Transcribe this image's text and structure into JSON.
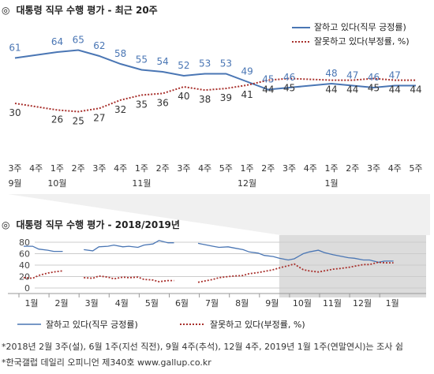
{
  "colors": {
    "approve": "#4a76b4",
    "disapprove": "#a8302c",
    "shade": "#dcdcdc",
    "grid": "#cccccc"
  },
  "titles": {
    "mark": "◎",
    "top": "대통령 직무 수행 평가 - 최근 20주",
    "bottom": "대통령 직무 수행 평가 - 2018/2019년"
  },
  "legend": {
    "approve": "잘하고 있다(직무 긍정률)",
    "disapprove": "잘못하고 있다(부정률, %)"
  },
  "notes": [
    "*2018년 2월 3주(설), 6월 1주(지선 직전), 9월 4주(추석), 12월 4주, 2019년 1월 1주(연말연시)는 조사 쉼",
    "*한국갤럽 데일리 오피니언 제340호 www.gallup.co.kr"
  ],
  "chart_data": [
    {
      "type": "line",
      "title": "대통령 직무 수행 평가 - 최근 20주",
      "categories": [
        "3주",
        "4주",
        "1주",
        "2주",
        "3주",
        "4주",
        "1주",
        "2주",
        "3주",
        "4주",
        "5주",
        "1주",
        "2주",
        "3주",
        "4주",
        "1주",
        "2주",
        "3주",
        "4주",
        "5주"
      ],
      "month_labels": [
        {
          "index": 0,
          "label": "9월"
        },
        {
          "index": 2,
          "label": "10월"
        },
        {
          "index": 6,
          "label": "11월"
        },
        {
          "index": 11,
          "label": "12월"
        },
        {
          "index": 15,
          "label": "1월"
        }
      ],
      "series": [
        {
          "name": "잘하고 있다(직무 긍정률)",
          "values": [
            61,
            null,
            64,
            65,
            62,
            58,
            55,
            54,
            52,
            53,
            53,
            49,
            45,
            46,
            null,
            48,
            47,
            46,
            47,
            47
          ]
        },
        {
          "name": "잘못하고 있다(부정률, %)",
          "values": [
            30,
            null,
            26,
            25,
            27,
            32,
            35,
            36,
            40,
            38,
            39,
            41,
            44,
            45,
            null,
            44,
            44,
            45,
            44,
            44
          ]
        }
      ],
      "value_labels": {
        "approve": [
          "61",
          "",
          "64",
          "65",
          "62",
          "58",
          "55",
          "54",
          "52",
          "53",
          "53",
          "49",
          "45",
          "46",
          "",
          "48",
          "47",
          "46",
          "47",
          ""
        ],
        "disapprove": [
          "30",
          "",
          "26",
          "25",
          "27",
          "32",
          "35",
          "36",
          "40",
          "38",
          "39",
          "41",
          "44",
          "45",
          "",
          "44",
          "44",
          "45",
          "44",
          "44"
        ]
      }
    },
    {
      "type": "line",
      "title": "대통령 직무 수행 평가 - 2018/2019년",
      "ylim": [
        0,
        80
      ],
      "yticks": [
        "0",
        "20",
        "40",
        "60",
        "80"
      ],
      "xticks": [
        "1월",
        "2월",
        "3월",
        "4월",
        "5월",
        "6월",
        "7월",
        "8월",
        "9월",
        "10월",
        "11월",
        "12월",
        "1월"
      ],
      "shaded_range": [
        8.5,
        12.3
      ],
      "gaps": [
        1.6,
        5.0,
        8.7,
        11.8
      ],
      "series": [
        {
          "name": "잘하고 있다(직무 긍정률)",
          "x": [
            0.0,
            0.3,
            0.5,
            0.8,
            1.0,
            1.3,
            1.5,
            1.8,
            2.0,
            2.3,
            2.5,
            2.8,
            3.0,
            3.3,
            3.5,
            3.8,
            4.0,
            4.3,
            4.5,
            4.8,
            5.0,
            5.3,
            5.5,
            5.8,
            6.0,
            6.3,
            6.5,
            6.8,
            7.0,
            7.3,
            7.5,
            7.8,
            8.0,
            8.3,
            8.5,
            8.8,
            9.0,
            9.3,
            9.5,
            9.8,
            10.0,
            10.3,
            10.5,
            10.8,
            11.0,
            11.3,
            11.5,
            11.8,
            12.0,
            12.3
          ],
          "values": [
            73,
            73,
            68,
            66,
            64,
            64,
            null,
            null,
            67,
            65,
            72,
            73,
            75,
            72,
            73,
            71,
            75,
            77,
            83,
            79,
            79,
            null,
            null,
            78,
            76,
            73,
            71,
            72,
            70,
            67,
            63,
            61,
            57,
            55,
            52,
            49,
            51,
            60,
            63,
            66,
            62,
            58,
            56,
            53,
            52,
            49,
            49,
            45,
            47,
            47
          ]
        },
        {
          "name": "잘못하고 있다(부정률, %)",
          "x": [
            0.0,
            0.3,
            0.5,
            0.8,
            1.0,
            1.3,
            1.5,
            1.8,
            2.0,
            2.3,
            2.5,
            2.8,
            3.0,
            3.3,
            3.5,
            3.8,
            4.0,
            4.3,
            4.5,
            4.8,
            5.0,
            5.3,
            5.5,
            5.8,
            6.0,
            6.3,
            6.5,
            6.8,
            7.0,
            7.3,
            7.5,
            7.8,
            8.0,
            8.3,
            8.5,
            8.8,
            9.0,
            9.3,
            9.5,
            9.8,
            10.0,
            10.3,
            10.5,
            10.8,
            11.0,
            11.3,
            11.5,
            11.8,
            12.0,
            12.3
          ],
          "values": [
            18,
            17,
            22,
            26,
            28,
            30,
            null,
            null,
            18,
            17,
            21,
            19,
            16,
            19,
            18,
            19,
            15,
            14,
            11,
            13,
            13,
            null,
            null,
            10,
            12,
            15,
            18,
            20,
            21,
            22,
            25,
            27,
            29,
            32,
            35,
            39,
            42,
            32,
            30,
            28,
            30,
            33,
            34,
            36,
            38,
            41,
            41,
            45,
            44,
            44
          ]
        }
      ]
    }
  ]
}
